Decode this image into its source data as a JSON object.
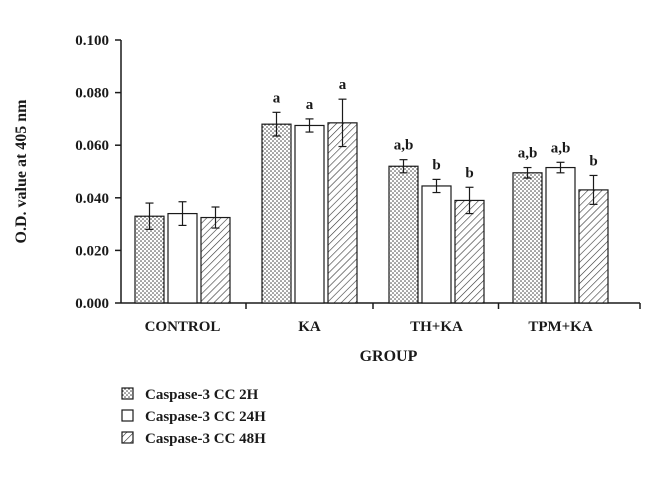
{
  "chart_data": {
    "type": "bar",
    "title": "",
    "xlabel": "GROUP",
    "ylabel": "O.D. value at 405 nm",
    "ylim": [
      0,
      0.1
    ],
    "yticks": [
      "0.000",
      "0.020",
      "0.040",
      "0.060",
      "0.080",
      "0.100"
    ],
    "ytick_values": [
      0,
      0.02,
      0.04,
      0.06,
      0.08,
      0.1
    ],
    "categories": [
      "CONTROL",
      "KA",
      "TH+KA",
      "TPM+KA"
    ],
    "series": [
      {
        "name": "Caspase-3 CC 2H",
        "pattern": "dots",
        "values": [
          0.033,
          0.068,
          0.052,
          0.0495
        ],
        "errors": [
          0.005,
          0.0045,
          0.0025,
          0.002
        ],
        "labels": [
          "",
          "a",
          "a,b",
          "a,b"
        ]
      },
      {
        "name": "Caspase-3 CC 24H",
        "pattern": "plain",
        "values": [
          0.034,
          0.0675,
          0.0445,
          0.0515
        ],
        "errors": [
          0.0045,
          0.0025,
          0.0025,
          0.002
        ],
        "labels": [
          "",
          "a",
          "b",
          "a,b"
        ]
      },
      {
        "name": "Caspase-3 CC 48H",
        "pattern": "hatch",
        "values": [
          0.0325,
          0.0685,
          0.039,
          0.043
        ],
        "errors": [
          0.004,
          0.009,
          0.005,
          0.0055
        ],
        "labels": [
          "",
          "a",
          "b",
          "b"
        ]
      }
    ],
    "legend_position": "bottom-left",
    "grid": false
  },
  "colors": {
    "ink": "#1a1a1a",
    "background": "#ffffff"
  }
}
